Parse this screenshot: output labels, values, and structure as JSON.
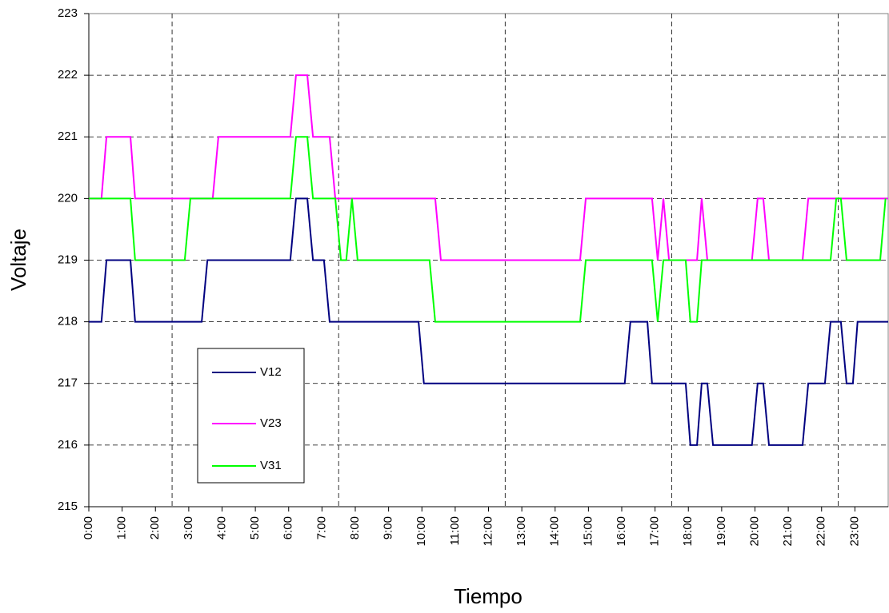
{
  "chart_data": {
    "type": "line",
    "x_label": "Tiempo",
    "y_label": "Voltaje",
    "xlim": [
      0,
      24
    ],
    "xticks": [
      {
        "value": 0,
        "label": "0:00"
      },
      {
        "value": 1,
        "label": "1:00"
      },
      {
        "value": 2,
        "label": "2:00"
      },
      {
        "value": 3,
        "label": "3:00"
      },
      {
        "value": 4,
        "label": "4:00"
      },
      {
        "value": 5,
        "label": "5:00"
      },
      {
        "value": 6,
        "label": "6:00"
      },
      {
        "value": 7,
        "label": "7:00"
      },
      {
        "value": 8,
        "label": "8:00"
      },
      {
        "value": 9,
        "label": "9:00"
      },
      {
        "value": 10,
        "label": "10:00"
      },
      {
        "value": 11,
        "label": "11:00"
      },
      {
        "value": 12,
        "label": "12:00"
      },
      {
        "value": 13,
        "label": "13:00"
      },
      {
        "value": 14,
        "label": "14:00"
      },
      {
        "value": 15,
        "label": "15:00"
      },
      {
        "value": 16,
        "label": "16:00"
      },
      {
        "value": 17,
        "label": "17:00"
      },
      {
        "value": 18,
        "label": "18:00"
      },
      {
        "value": 19,
        "label": "19:00"
      },
      {
        "value": 20,
        "label": "20:00"
      },
      {
        "value": 21,
        "label": "21:00"
      },
      {
        "value": 22,
        "label": "22:00"
      },
      {
        "value": 23,
        "label": "23:00"
      }
    ],
    "x_gridlines": [
      2.5,
      7.5,
      12.5,
      17.5,
      22.5
    ],
    "ylim": [
      215,
      223
    ],
    "yticks": [
      215,
      216,
      217,
      218,
      219,
      220,
      221,
      222,
      223
    ],
    "grid": true,
    "series": [
      {
        "name": "V12",
        "color": "#000080",
        "x": [
          0,
          0.38,
          0.53,
          1.25,
          1.39,
          3.39,
          3.56,
          6.05,
          6.22,
          6.56,
          6.73,
          7.06,
          7.23,
          9.9,
          10.06,
          16.09,
          16.26,
          16.77,
          16.91,
          17.92,
          18.06,
          18.26,
          18.4,
          18.57,
          18.74,
          19.91,
          20.08,
          20.25,
          20.42,
          21.43,
          21.6,
          22.1,
          22.27,
          22.58,
          22.75,
          22.94,
          23.08,
          24
        ],
        "values": [
          218,
          218,
          219,
          219,
          218,
          218,
          219,
          219,
          220,
          220,
          219,
          219,
          218,
          218,
          217,
          217,
          218,
          218,
          217,
          217,
          216,
          216,
          217,
          217,
          216,
          216,
          217,
          217,
          216,
          216,
          217,
          217,
          218,
          218,
          217,
          217,
          218,
          218
        ]
      },
      {
        "name": "V23",
        "color": "#ff00ff",
        "x": [
          0,
          0.38,
          0.53,
          1.25,
          1.39,
          3.72,
          3.89,
          6.05,
          6.22,
          6.56,
          6.73,
          7.23,
          7.4,
          10.4,
          10.57,
          14.75,
          14.92,
          16.91,
          17.08,
          17.25,
          17.42,
          18.26,
          18.4,
          18.57,
          19.91,
          20.08,
          20.25,
          20.42,
          21.43,
          21.6,
          24
        ],
        "values": [
          220,
          220,
          221,
          221,
          220,
          220,
          221,
          221,
          222,
          222,
          221,
          221,
          220,
          220,
          219,
          219,
          220,
          220,
          219,
          220,
          219,
          219,
          220,
          219,
          219,
          220,
          220,
          219,
          219,
          220,
          220
        ]
      },
      {
        "name": "V31",
        "color": "#00ff00",
        "x": [
          0,
          1.25,
          1.39,
          2.88,
          3.05,
          6.05,
          6.22,
          6.56,
          6.73,
          7.4,
          7.57,
          7.73,
          7.9,
          8.07,
          10.23,
          10.4,
          14.75,
          14.92,
          16.91,
          17.08,
          17.25,
          17.92,
          18.06,
          18.26,
          18.4,
          22.27,
          22.44,
          22.58,
          22.75,
          23.76,
          23.92
        ],
        "values": [
          220,
          220,
          219,
          219,
          220,
          220,
          221,
          221,
          220,
          220,
          219,
          219,
          220,
          219,
          219,
          218,
          218,
          219,
          219,
          218,
          219,
          219,
          218,
          218,
          219,
          219,
          220,
          220,
          219,
          219,
          220
        ]
      }
    ]
  }
}
